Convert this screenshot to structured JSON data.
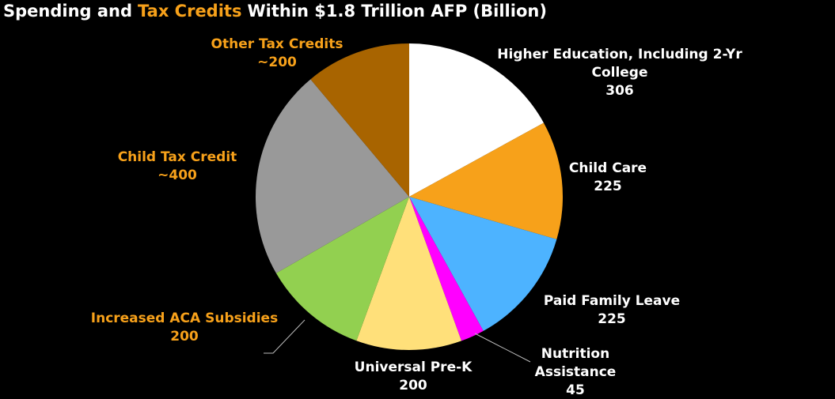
{
  "chart_data": {
    "type": "pie",
    "title": [
      "Spending and",
      "Tax Credits",
      "Within $1.8 Trillion AFP (Billion)"
    ],
    "title_colors": [
      "#ffffff",
      "#f7a11a",
      "#ffffff"
    ],
    "categories": [
      "Higher Education, Including 2-Yr College",
      "Child Care",
      "Paid Family Leave",
      "Nutrition Assistance",
      "Universal Pre-K",
      "Increased ACA Subsidies",
      "Child Tax Credit",
      "Other Tax Credits"
    ],
    "values": [
      306,
      225,
      225,
      45,
      200,
      200,
      400,
      200
    ],
    "value_labels": [
      "306",
      "225",
      "225",
      "45",
      "200",
      "200",
      "~400",
      "~200"
    ],
    "colors": [
      "#ffffff",
      "#f7a11a",
      "#4db3ff",
      "#ff00ff",
      "#ffe07a",
      "#92d050",
      "#999999",
      "#a86400"
    ],
    "label_colors": [
      "#ffffff",
      "#ffffff",
      "#ffffff",
      "#ffffff",
      "#ffffff",
      "#f7a11a",
      "#f7a11a",
      "#f7a11a"
    ]
  }
}
